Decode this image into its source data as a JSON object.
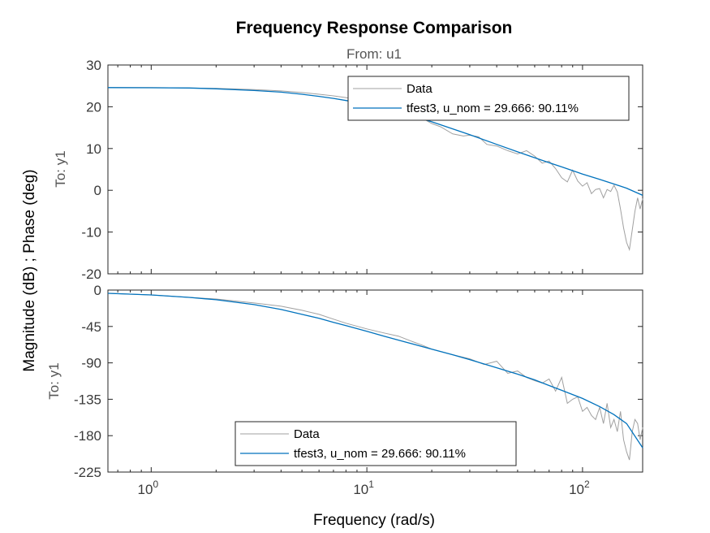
{
  "figure": {
    "title": "Frequency Response Comparison",
    "from_label": "From: u1",
    "ylabel": "Magnitude (dB) ; Phase (deg)",
    "xlabel": "Frequency  (rad/s)"
  },
  "chart_data": [
    {
      "type": "line",
      "panel": "magnitude",
      "row_label": "To: y1",
      "xscale": "log",
      "xlim": [
        0.63,
        190
      ],
      "ylim": [
        -20,
        30
      ],
      "yticks": [
        30,
        20,
        10,
        0,
        -10,
        -20
      ],
      "xticks": [
        1,
        10,
        100
      ],
      "xtick_labels": [
        {
          "base": "10",
          "exp": "0"
        },
        {
          "base": "10",
          "exp": "1"
        },
        {
          "base": "10",
          "exp": "2"
        }
      ],
      "grid": false,
      "legend": {
        "position": "top-right",
        "entries": [
          "Data",
          "tfest3, u_nom = 29.666: 90.11%"
        ]
      },
      "series": [
        {
          "name": "Data",
          "color": "#a0a0a0",
          "x": [
            0.63,
            1,
            1.5,
            2,
            3,
            4,
            5,
            6,
            7,
            8,
            9,
            10,
            12,
            14,
            16,
            18,
            20,
            22,
            25,
            28,
            30,
            33,
            36,
            40,
            45,
            50,
            55,
            60,
            65,
            70,
            75,
            80,
            85,
            90,
            95,
            100,
            105,
            110,
            115,
            120,
            125,
            130,
            135,
            140,
            145,
            150,
            155,
            160,
            165,
            170,
            175,
            180,
            185,
            190
          ],
          "y": [
            24.6,
            24.6,
            24.5,
            24.4,
            24.1,
            23.8,
            23.4,
            23.0,
            22.6,
            22.2,
            21.7,
            21.2,
            19.8,
            19.2,
            17.8,
            17.3,
            16.0,
            15.2,
            13.5,
            13.0,
            13.2,
            12.8,
            11.0,
            10.6,
            9.5,
            8.7,
            9.5,
            8.2,
            6.5,
            7.0,
            5.2,
            3.0,
            2.0,
            4.8,
            2.2,
            1.0,
            1.8,
            -0.8,
            0.2,
            0.4,
            -1.8,
            0.2,
            -0.3,
            1.2,
            -0.4,
            -4.5,
            -9.0,
            -12.5,
            -14.2,
            -9.5,
            -5.0,
            -1.8,
            -4.5,
            -2.0
          ]
        },
        {
          "name": "tfest3, u_nom = 29.666: 90.11%",
          "color": "#0072bd",
          "x": [
            0.63,
            1,
            1.5,
            2,
            3,
            4,
            5,
            6,
            7,
            8,
            10,
            12,
            15,
            20,
            25,
            30,
            40,
            50,
            60,
            70,
            80,
            90,
            100,
            120,
            140,
            160,
            190
          ],
          "y": [
            24.6,
            24.55,
            24.5,
            24.3,
            23.9,
            23.5,
            23.0,
            22.5,
            22.0,
            21.5,
            20.6,
            19.7,
            18.4,
            16.4,
            14.7,
            13.3,
            11.0,
            9.2,
            7.8,
            6.6,
            5.6,
            4.7,
            3.9,
            2.6,
            1.5,
            0.5,
            -1.2
          ]
        }
      ]
    },
    {
      "type": "line",
      "panel": "phase",
      "row_label": "To: y1",
      "xscale": "log",
      "xlim": [
        0.63,
        190
      ],
      "ylim": [
        -225,
        0
      ],
      "yticks": [
        0,
        -45,
        -90,
        -135,
        -180,
        -225
      ],
      "xticks": [
        1,
        10,
        100
      ],
      "xtick_labels": [
        {
          "base": "10",
          "exp": "0"
        },
        {
          "base": "10",
          "exp": "1"
        },
        {
          "base": "10",
          "exp": "2"
        }
      ],
      "grid": false,
      "legend": {
        "position": "bottom-center",
        "entries": [
          "Data",
          "tfest3, u_nom = 29.666: 90.11%"
        ]
      },
      "series": [
        {
          "name": "Data",
          "color": "#a0a0a0",
          "x": [
            0.63,
            1,
            1.5,
            2,
            3,
            4,
            5,
            6,
            7,
            8,
            10,
            12,
            14,
            16,
            18,
            20,
            25,
            30,
            35,
            40,
            45,
            50,
            55,
            60,
            65,
            70,
            75,
            80,
            85,
            90,
            95,
            100,
            105,
            110,
            115,
            120,
            125,
            130,
            135,
            140,
            145,
            150,
            155,
            160,
            165,
            170,
            175,
            180,
            185,
            190
          ],
          "y": [
            -4,
            -6,
            -9,
            -11,
            -16,
            -20,
            -25,
            -30,
            -36,
            -41,
            -48,
            -53,
            -57,
            -63,
            -68,
            -73,
            -80,
            -85,
            -92,
            -88,
            -103,
            -100,
            -108,
            -112,
            -115,
            -110,
            -125,
            -108,
            -140,
            -135,
            -132,
            -150,
            -145,
            -155,
            -160,
            -145,
            -165,
            -140,
            -170,
            -160,
            -175,
            -150,
            -185,
            -200,
            -210,
            -175,
            -160,
            -165,
            -185,
            -170
          ]
        },
        {
          "name": "tfest3, u_nom = 29.666: 90.11%",
          "color": "#0072bd",
          "x": [
            0.63,
            1,
            1.5,
            2,
            3,
            4,
            5,
            6,
            7,
            8,
            10,
            12,
            15,
            20,
            25,
            30,
            40,
            50,
            60,
            70,
            80,
            100,
            120,
            140,
            160,
            190
          ],
          "y": [
            -4,
            -6,
            -9,
            -12,
            -18,
            -24,
            -30,
            -35,
            -40,
            -44,
            -51,
            -57,
            -64,
            -73,
            -80,
            -86,
            -96,
            -104,
            -111,
            -118,
            -124,
            -134,
            -144,
            -154,
            -165,
            -195
          ]
        }
      ]
    }
  ]
}
